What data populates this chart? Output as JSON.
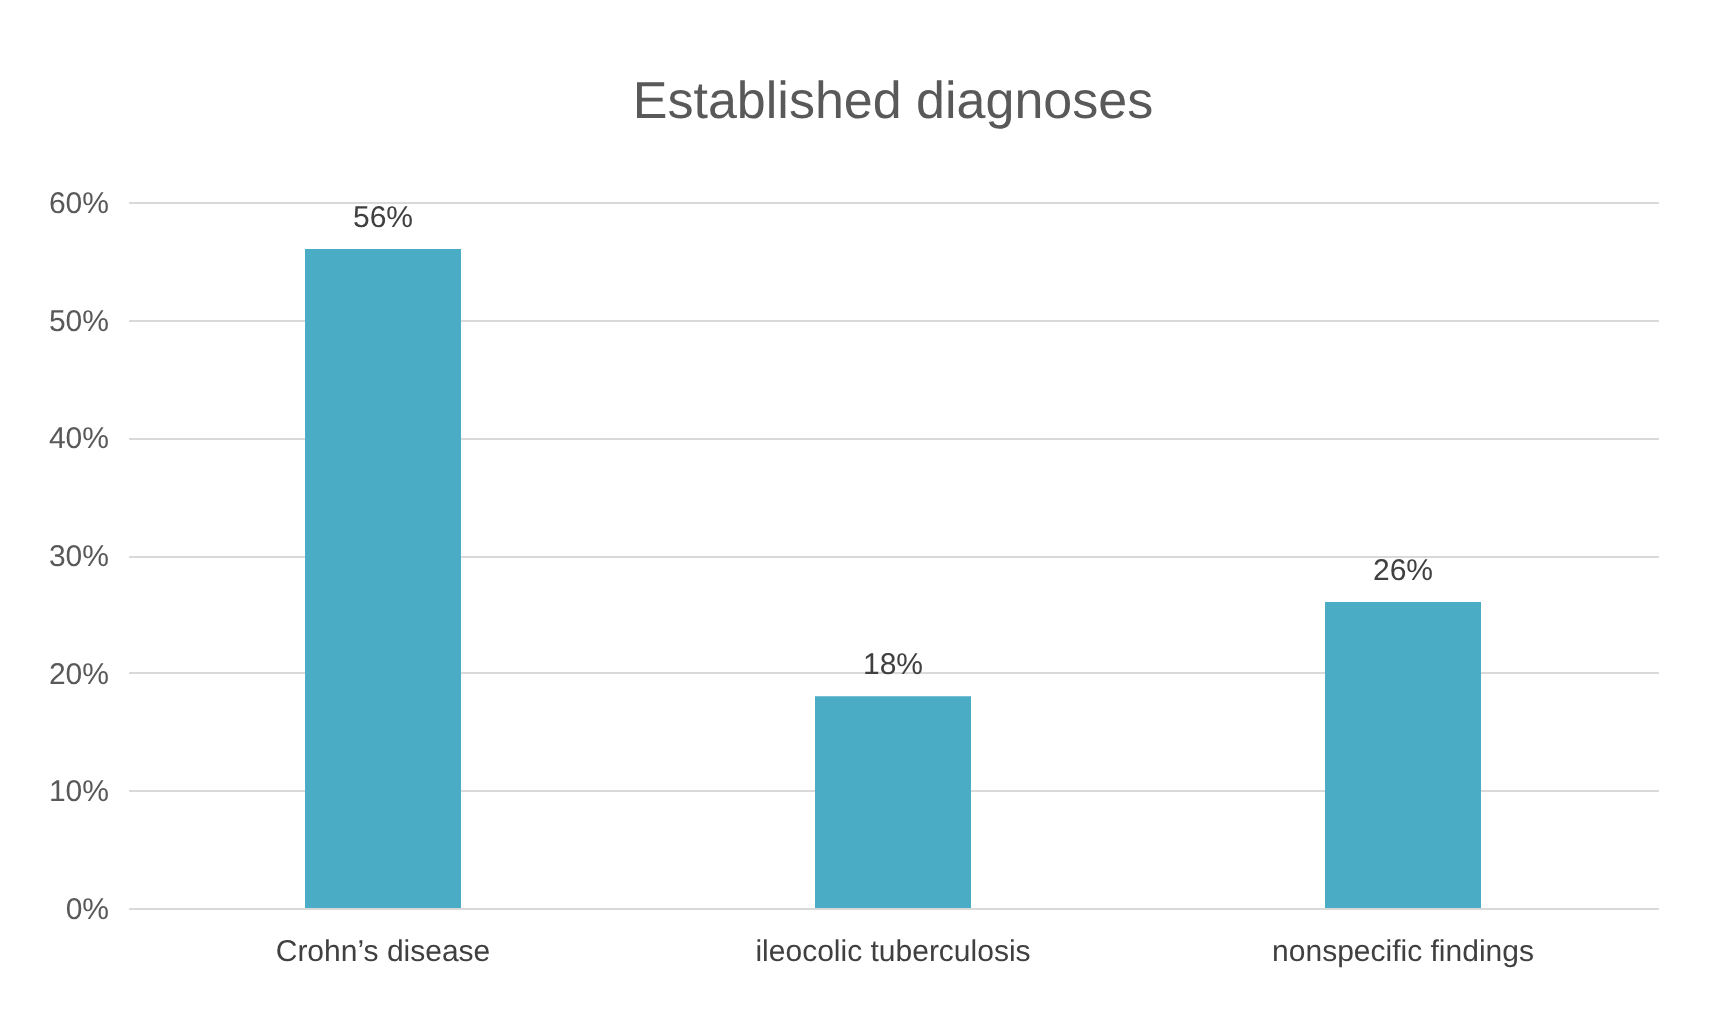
{
  "chart_data": {
    "type": "bar",
    "title": "Established diagnoses",
    "categories": [
      "Crohn’s disease",
      "ileocolic tuberculosis",
      "nonspecific findings"
    ],
    "values": [
      56,
      18,
      26
    ],
    "color": "#4bacc6",
    "value_labels": [
      "56%",
      "18%",
      "26%"
    ],
    "ylim": [
      0,
      60
    ],
    "yticks": [
      {
        "value": 0,
        "label": "0%"
      },
      {
        "value": 10,
        "label": "10%"
      },
      {
        "value": 20,
        "label": "20%"
      },
      {
        "value": 30,
        "label": "30%"
      },
      {
        "value": 40,
        "label": "40%"
      },
      {
        "value": 50,
        "label": "50%"
      },
      {
        "value": 60,
        "label": "60%"
      }
    ],
    "grid": "y"
  }
}
